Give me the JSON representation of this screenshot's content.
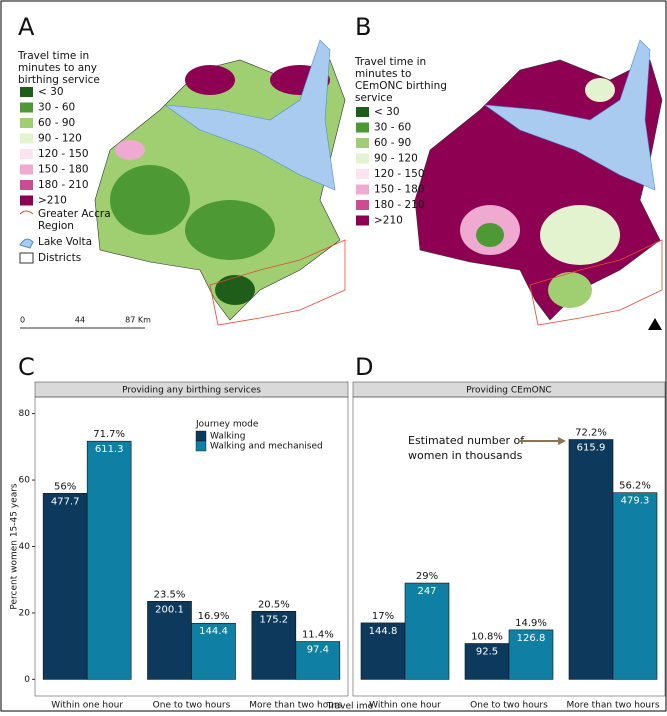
{
  "panels": {
    "a": "A",
    "b": "B",
    "c": "C",
    "d": "D"
  },
  "map_a": {
    "legend_title": [
      "Travel time in",
      "minutes to any",
      "birthing service"
    ],
    "legend": [
      "< 30",
      "30 - 60",
      "60 - 90",
      "90 - 120",
      "120 - 150",
      "150 - 180",
      "180 - 210",
      ">210"
    ],
    "colors": [
      "#1f5e1a",
      "#4d9a35",
      "#9fcf70",
      "#e3f2cf",
      "#fbe3ef",
      "#eeaad0",
      "#cc4c93",
      "#8e0152"
    ],
    "extra_legend": [
      [
        "Greater Accra",
        "Region"
      ],
      [
        "Lake Volta"
      ],
      [
        "Districts"
      ]
    ],
    "scale": [
      "0",
      "44",
      "87 Km"
    ]
  },
  "map_b": {
    "legend_title": [
      "Travel time in",
      "minutes to",
      "CEmONC birthing",
      "service"
    ],
    "legend": [
      "< 30",
      "30 - 60",
      "60 - 90",
      "90 - 120",
      "120 - 150",
      "150 - 180",
      "180 - 210",
      ">210"
    ]
  },
  "chart_data": [
    {
      "type": "bar",
      "title": "Providing any birthing services",
      "y_label": "Percent women 15-45 years",
      "x_label": "Travel ime",
      "legend_title": "Journey mode",
      "categories": [
        "Within one hour",
        "One to two hours",
        "More than two hours"
      ],
      "series": [
        {
          "name": "Walking",
          "color": "#0d3a5c",
          "values": [
            56,
            23.5,
            20.5
          ],
          "value_labels": [
            "56%",
            "23.5%",
            "20.5%"
          ],
          "thousands": [
            477.7,
            200.1,
            175.2
          ]
        },
        {
          "name": "Walking and mechanised",
          "color": "#0f7fa3",
          "values": [
            71.7,
            16.9,
            11.4
          ],
          "value_labels": [
            "71.7%",
            "16.9%",
            "11.4%"
          ],
          "thousands": [
            611.3,
            144.4,
            97.4
          ]
        }
      ],
      "ylim": [
        -5,
        85
      ],
      "yticks": [
        0,
        20,
        40,
        60,
        80
      ]
    },
    {
      "type": "bar",
      "title": "Providing CEmONC",
      "annotation": [
        "Estimated number of",
        "women in thousands"
      ],
      "categories": [
        "Within one hour",
        "One to two hours",
        "More than two hours"
      ],
      "series": [
        {
          "name": "Walking",
          "color": "#0d3a5c",
          "values": [
            17,
            10.8,
            72.2
          ],
          "value_labels": [
            "17%",
            "10.8%",
            "72.2%"
          ],
          "thousands": [
            144.8,
            92.5,
            615.9
          ]
        },
        {
          "name": "Walking and mechanised",
          "color": "#0f7fa3",
          "values": [
            29,
            14.9,
            56.2
          ],
          "value_labels": [
            "29%",
            "14.9%",
            "56.2%"
          ],
          "thousands": [
            247,
            126.8,
            479.3
          ]
        }
      ],
      "ylim": [
        -5,
        85
      ]
    }
  ]
}
